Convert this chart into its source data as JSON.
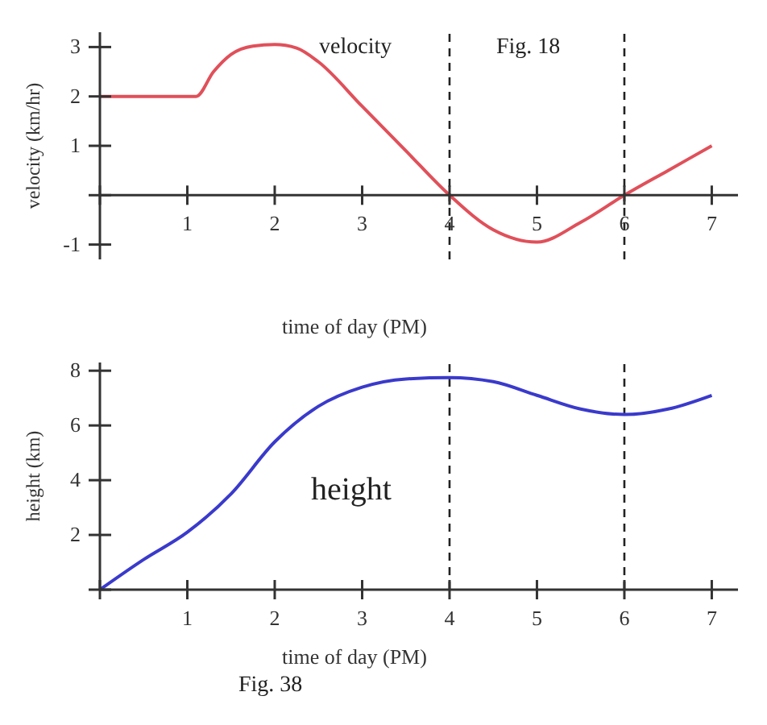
{
  "chart_data": [
    {
      "type": "line",
      "xlabel": "time of day    (PM)",
      "ylabel": "velocity  (km/hr)",
      "annotations": [
        "Fig. 18"
      ],
      "x": [
        0,
        1.1,
        1.3,
        1.5,
        1.75,
        2,
        2.25,
        2.5,
        3,
        3.5,
        4,
        4.5,
        5,
        5.5,
        6,
        6.5,
        7
      ],
      "series": [
        {
          "name": "velocity",
          "color": "#e0505a",
          "values": [
            2,
            2,
            2.5,
            2.85,
            3.02,
            3.05,
            2.98,
            2.7,
            1.8,
            0.9,
            0,
            -0.7,
            -0.95,
            -0.55,
            0,
            0.5,
            1
          ]
        }
      ],
      "xlim": [
        0,
        7.3
      ],
      "xticks": [
        {
          "value": 0,
          "label": null
        },
        1,
        2,
        3,
        4,
        5,
        6,
        7
      ],
      "ylim": [
        -1.3,
        3.3
      ],
      "yticks": [
        -1,
        {
          "value": 0,
          "label": null
        },
        1,
        2,
        3
      ],
      "ref_lines": [
        {
          "axis": "x",
          "value": 4,
          "line_style": "dashed",
          "color": "#222222"
        },
        {
          "axis": "x",
          "value": 6,
          "line_style": "dashed",
          "color": "#222222"
        }
      ],
      "grid": false,
      "legend": false,
      "marker": "none",
      "line_style": "solid"
    },
    {
      "type": "line",
      "xlabel": "time of day    (PM)",
      "ylabel": "height  (km)",
      "annotations": [
        "Fig. 38"
      ],
      "x": [
        0,
        0.5,
        1,
        1.5,
        2,
        2.5,
        3,
        3.5,
        4,
        4.5,
        5,
        5.5,
        6,
        6.5,
        7
      ],
      "series": [
        {
          "name": "height",
          "color": "#3a3acc",
          "values": [
            0,
            1.1,
            2.1,
            3.5,
            5.4,
            6.7,
            7.4,
            7.7,
            7.75,
            7.6,
            7.1,
            6.6,
            6.4,
            6.6,
            7.1
          ]
        }
      ],
      "xlim": [
        0,
        7.3
      ],
      "xticks": [
        {
          "value": 0,
          "label": null
        },
        1,
        2,
        3,
        4,
        5,
        6,
        7
      ],
      "ylim": [
        0,
        8.3
      ],
      "yticks": [
        {
          "value": 0,
          "label": null
        },
        2,
        4,
        6,
        8
      ],
      "ref_lines": [
        {
          "axis": "x",
          "value": 4,
          "line_style": "dashed",
          "color": "#222222"
        },
        {
          "axis": "x",
          "value": 6,
          "line_style": "dashed",
          "color": "#222222"
        }
      ],
      "grid": false,
      "legend": false,
      "marker": "none",
      "line_style": "solid"
    }
  ]
}
